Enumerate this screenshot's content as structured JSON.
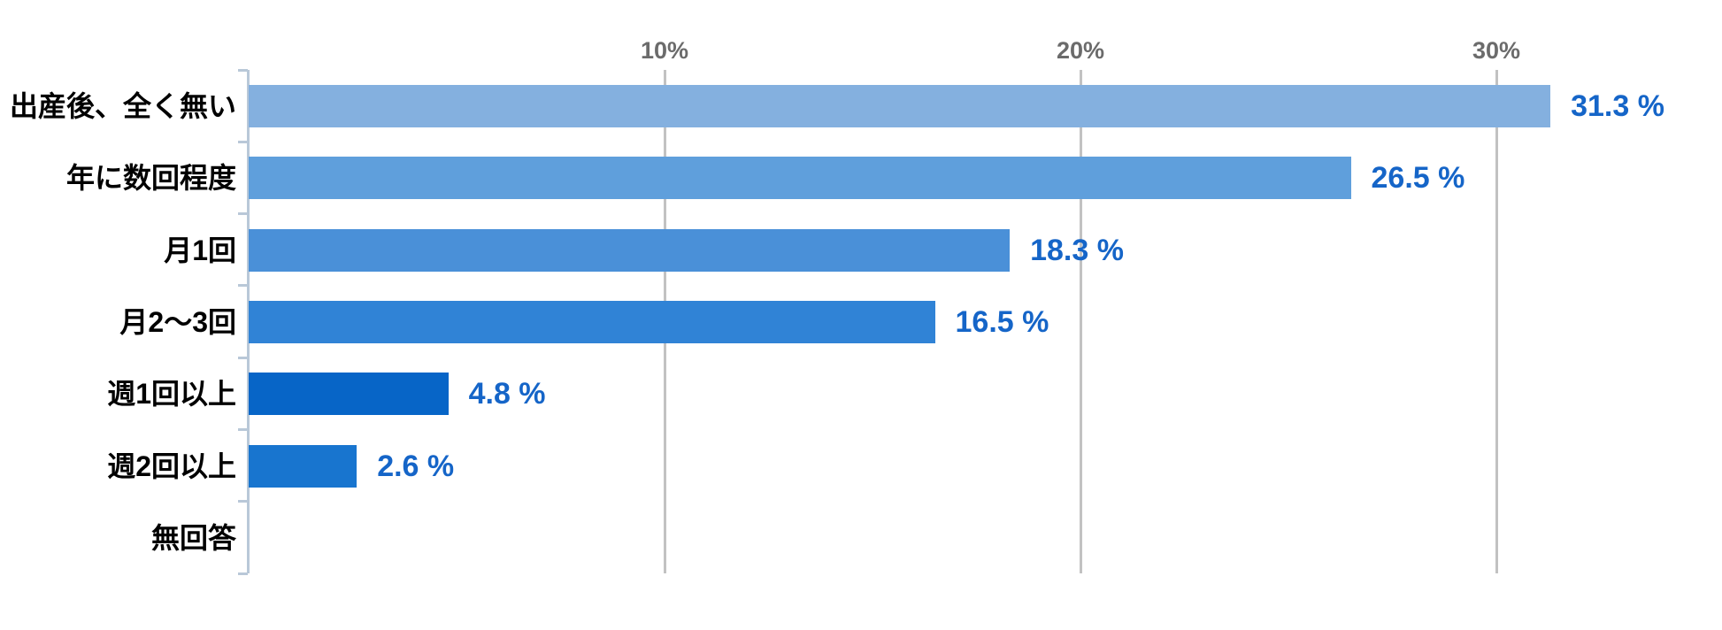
{
  "chart_data": {
    "type": "bar",
    "orientation": "horizontal",
    "title": "",
    "xlabel": "",
    "ylabel": "",
    "xlim": [
      0,
      35.4
    ],
    "grid": "vertical",
    "x_ticks": [
      {
        "pct": 10,
        "label": "10%"
      },
      {
        "pct": 20,
        "label": "20%"
      },
      {
        "pct": 30,
        "label": "30%"
      }
    ],
    "categories": [
      "出産後、全く無い",
      "年に数回程度",
      "月1回",
      "月2〜3回",
      "週1回以上",
      "週2回以上",
      "無回答"
    ],
    "values": [
      31.3,
      26.5,
      18.3,
      16.5,
      4.8,
      2.6,
      null
    ],
    "rows": [
      {
        "label": "出産後、全く無い",
        "value": 31.3,
        "value_label": "31.3 %",
        "color": "#84b0df"
      },
      {
        "label": "年に数回程度",
        "value": 26.5,
        "value_label": "26.5 %",
        "color": "#5f9fdc"
      },
      {
        "label": "月1回",
        "value": 18.3,
        "value_label": "18.3 %",
        "color": "#4a90d8"
      },
      {
        "label": "月2〜3回",
        "value": 16.5,
        "value_label": "16.5 %",
        "color": "#3083d6"
      },
      {
        "label": "週1回以上",
        "value": 4.8,
        "value_label": "4.8 %",
        "color": "#0765c7"
      },
      {
        "label": "週2回以上",
        "value": 2.6,
        "value_label": "2.6 %",
        "color": "#1875cf"
      },
      {
        "label": "無回答",
        "value": null,
        "value_label": "",
        "color": null
      }
    ],
    "colors": {
      "value_label_text": "#1565c8",
      "category_label_text": "#000000",
      "axis_tick_label_text": "#6b6b6b",
      "gridline": "#c2c2c2",
      "axis_line": "#b9c8d8",
      "background": "#ffffff"
    }
  }
}
